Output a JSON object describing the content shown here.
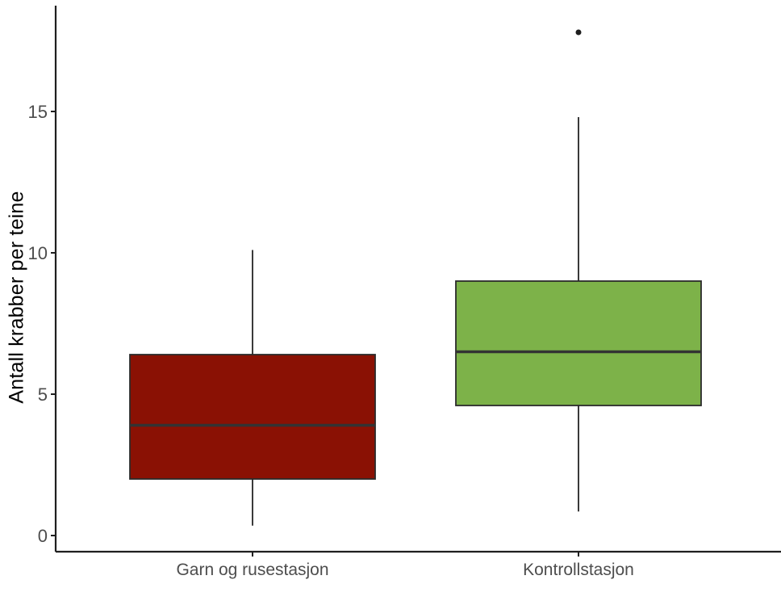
{
  "chart_data": {
    "type": "boxplot",
    "ylabel": "Antall krabber per teine",
    "xlabel": "",
    "categories": [
      "Garn og rusestasjon",
      "Kontrollstasjon"
    ],
    "yticks": [
      0,
      5,
      10,
      15
    ],
    "ylim": [
      0,
      18.7
    ],
    "grid": "off",
    "legend": "none",
    "series": [
      {
        "name": "Garn og rusestasjon",
        "whisker_low": 0.35,
        "q1": 2.0,
        "median": 3.9,
        "q3": 6.4,
        "whisker_high": 10.1,
        "outliers": [],
        "fill": "#8A1104"
      },
      {
        "name": "Kontrollstasjon",
        "whisker_low": 0.85,
        "q1": 4.6,
        "median": 6.5,
        "q3": 9.0,
        "whisker_high": 14.8,
        "outliers": [
          17.8
        ],
        "fill": "#7DB249"
      }
    ],
    "colors": {
      "axis": "#1f1f1f",
      "box_border": "#2b2b2b",
      "whisker": "#3a3a3a",
      "median": "#333333",
      "tick_label": "#4d4d4d",
      "outlier": "#1e1e1e",
      "background": "#ffffff",
      "ylabel_color": "#000000"
    }
  }
}
